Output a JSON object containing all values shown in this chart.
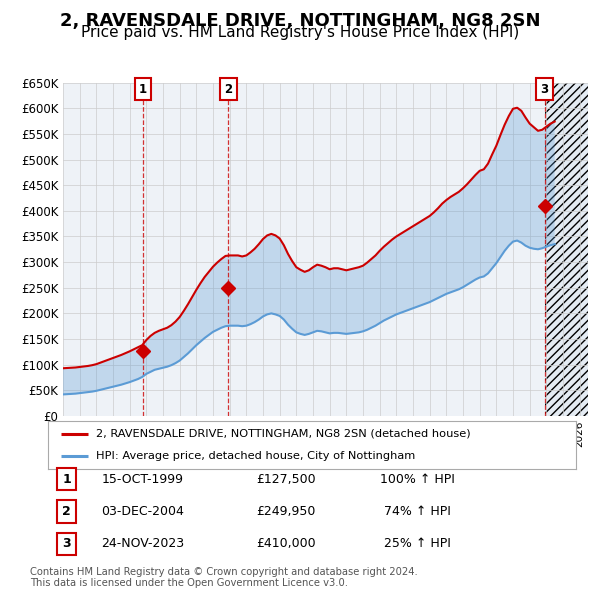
{
  "title": "2, RAVENSDALE DRIVE, NOTTINGHAM, NG8 2SN",
  "subtitle": "Price paid vs. HM Land Registry's House Price Index (HPI)",
  "title_fontsize": 13,
  "subtitle_fontsize": 11,
  "ylim": [
    0,
    650000
  ],
  "yticks": [
    0,
    50000,
    100000,
    150000,
    200000,
    250000,
    300000,
    350000,
    400000,
    450000,
    500000,
    550000,
    600000,
    650000
  ],
  "ytick_labels": [
    "£0",
    "£50K",
    "£100K",
    "£150K",
    "£200K",
    "£250K",
    "£300K",
    "£350K",
    "£400K",
    "£450K",
    "£500K",
    "£550K",
    "£600K",
    "£650K"
  ],
  "xlim_start": 1995.0,
  "xlim_end": 2026.5,
  "sale_dates": [
    1999.79,
    2004.92,
    2023.9
  ],
  "sale_prices": [
    127500,
    249950,
    410000
  ],
  "sale_labels": [
    "1",
    "2",
    "3"
  ],
  "sale_date_strs": [
    "15-OCT-1999",
    "03-DEC-2004",
    "24-NOV-2023"
  ],
  "sale_price_strs": [
    "£127,500",
    "£249,950",
    "£410,000"
  ],
  "sale_hpi_strs": [
    "100% ↑ HPI",
    "74% ↑ HPI",
    "25% ↑ HPI"
  ],
  "red_line_color": "#cc0000",
  "blue_line_color": "#5b9bd5",
  "fill_alpha": 0.3,
  "grid_color": "#cccccc",
  "legend_label_red": "2, RAVENSDALE DRIVE, NOTTINGHAM, NG8 2SN (detached house)",
  "legend_label_blue": "HPI: Average price, detached house, City of Nottingham",
  "footer_line1": "Contains HM Land Registry data © Crown copyright and database right 2024.",
  "footer_line2": "This data is licensed under the Open Government Licence v3.0.",
  "hpi_years": [
    1995.0,
    1995.25,
    1995.5,
    1995.75,
    1996.0,
    1996.25,
    1996.5,
    1996.75,
    1997.0,
    1997.25,
    1997.5,
    1997.75,
    1998.0,
    1998.25,
    1998.5,
    1998.75,
    1999.0,
    1999.25,
    1999.5,
    1999.75,
    2000.0,
    2000.25,
    2000.5,
    2000.75,
    2001.0,
    2001.25,
    2001.5,
    2001.75,
    2002.0,
    2002.25,
    2002.5,
    2002.75,
    2003.0,
    2003.25,
    2003.5,
    2003.75,
    2004.0,
    2004.25,
    2004.5,
    2004.75,
    2005.0,
    2005.25,
    2005.5,
    2005.75,
    2006.0,
    2006.25,
    2006.5,
    2006.75,
    2007.0,
    2007.25,
    2007.5,
    2007.75,
    2008.0,
    2008.25,
    2008.5,
    2008.75,
    2009.0,
    2009.25,
    2009.5,
    2009.75,
    2010.0,
    2010.25,
    2010.5,
    2010.75,
    2011.0,
    2011.25,
    2011.5,
    2011.75,
    2012.0,
    2012.25,
    2012.5,
    2012.75,
    2013.0,
    2013.25,
    2013.5,
    2013.75,
    2014.0,
    2014.25,
    2014.5,
    2014.75,
    2015.0,
    2015.25,
    2015.5,
    2015.75,
    2016.0,
    2016.25,
    2016.5,
    2016.75,
    2017.0,
    2017.25,
    2017.5,
    2017.75,
    2018.0,
    2018.25,
    2018.5,
    2018.75,
    2019.0,
    2019.25,
    2019.5,
    2019.75,
    2020.0,
    2020.25,
    2020.5,
    2020.75,
    2021.0,
    2021.25,
    2021.5,
    2021.75,
    2022.0,
    2022.25,
    2022.5,
    2022.75,
    2023.0,
    2023.25,
    2023.5,
    2023.75,
    2024.0,
    2024.25,
    2024.5
  ],
  "hpi_blue": [
    42000,
    42500,
    43000,
    43500,
    44500,
    45500,
    46500,
    47500,
    49000,
    51000,
    53000,
    55000,
    57000,
    59000,
    61000,
    63500,
    66000,
    69000,
    72000,
    76000,
    82000,
    86000,
    90000,
    92000,
    94000,
    96000,
    99000,
    103000,
    108000,
    115000,
    122000,
    130000,
    138000,
    145000,
    152000,
    158000,
    164000,
    168000,
    172000,
    175000,
    176000,
    176000,
    176000,
    175000,
    176000,
    179000,
    183000,
    188000,
    194000,
    198000,
    200000,
    198000,
    195000,
    188000,
    178000,
    170000,
    163000,
    160000,
    158000,
    160000,
    163000,
    166000,
    165000,
    163000,
    161000,
    162000,
    162000,
    161000,
    160000,
    161000,
    162000,
    163000,
    165000,
    168000,
    172000,
    176000,
    181000,
    186000,
    190000,
    194000,
    198000,
    201000,
    204000,
    207000,
    210000,
    213000,
    216000,
    219000,
    222000,
    226000,
    230000,
    234000,
    238000,
    241000,
    244000,
    247000,
    251000,
    256000,
    261000,
    266000,
    270000,
    272000,
    278000,
    288000,
    298000,
    310000,
    322000,
    332000,
    340000,
    342000,
    338000,
    332000,
    328000,
    326000,
    325000,
    327000,
    330000,
    333000,
    335000
  ],
  "hpi_red": [
    93000,
    93500,
    94000,
    94500,
    95500,
    96500,
    97500,
    99000,
    101000,
    104000,
    107000,
    110000,
    113000,
    116000,
    119000,
    122500,
    126000,
    130000,
    134000,
    138000,
    148000,
    156000,
    162000,
    166000,
    169000,
    172000,
    177000,
    184000,
    193000,
    205000,
    218000,
    232000,
    246000,
    259000,
    271000,
    281000,
    291000,
    299000,
    306000,
    312000,
    313000,
    313000,
    313000,
    311000,
    313000,
    319000,
    326000,
    335000,
    345000,
    352000,
    355000,
    352000,
    346000,
    333000,
    316000,
    302000,
    290000,
    285000,
    281000,
    284000,
    290000,
    295000,
    293000,
    290000,
    286000,
    288000,
    288000,
    286000,
    284000,
    286000,
    288000,
    290000,
    293000,
    299000,
    306000,
    313000,
    322000,
    330000,
    337000,
    344000,
    350000,
    355000,
    360000,
    365000,
    370000,
    375000,
    380000,
    385000,
    390000,
    397000,
    405000,
    414000,
    421000,
    427000,
    432000,
    437000,
    444000,
    452000,
    461000,
    470000,
    478000,
    481000,
    492000,
    510000,
    527000,
    548000,
    568000,
    585000,
    599000,
    601000,
    595000,
    582000,
    570000,
    563000,
    556000,
    558000,
    564000,
    570000,
    574000
  ],
  "background_color": "#ffffff",
  "plot_bg_color": "#eef2f7"
}
